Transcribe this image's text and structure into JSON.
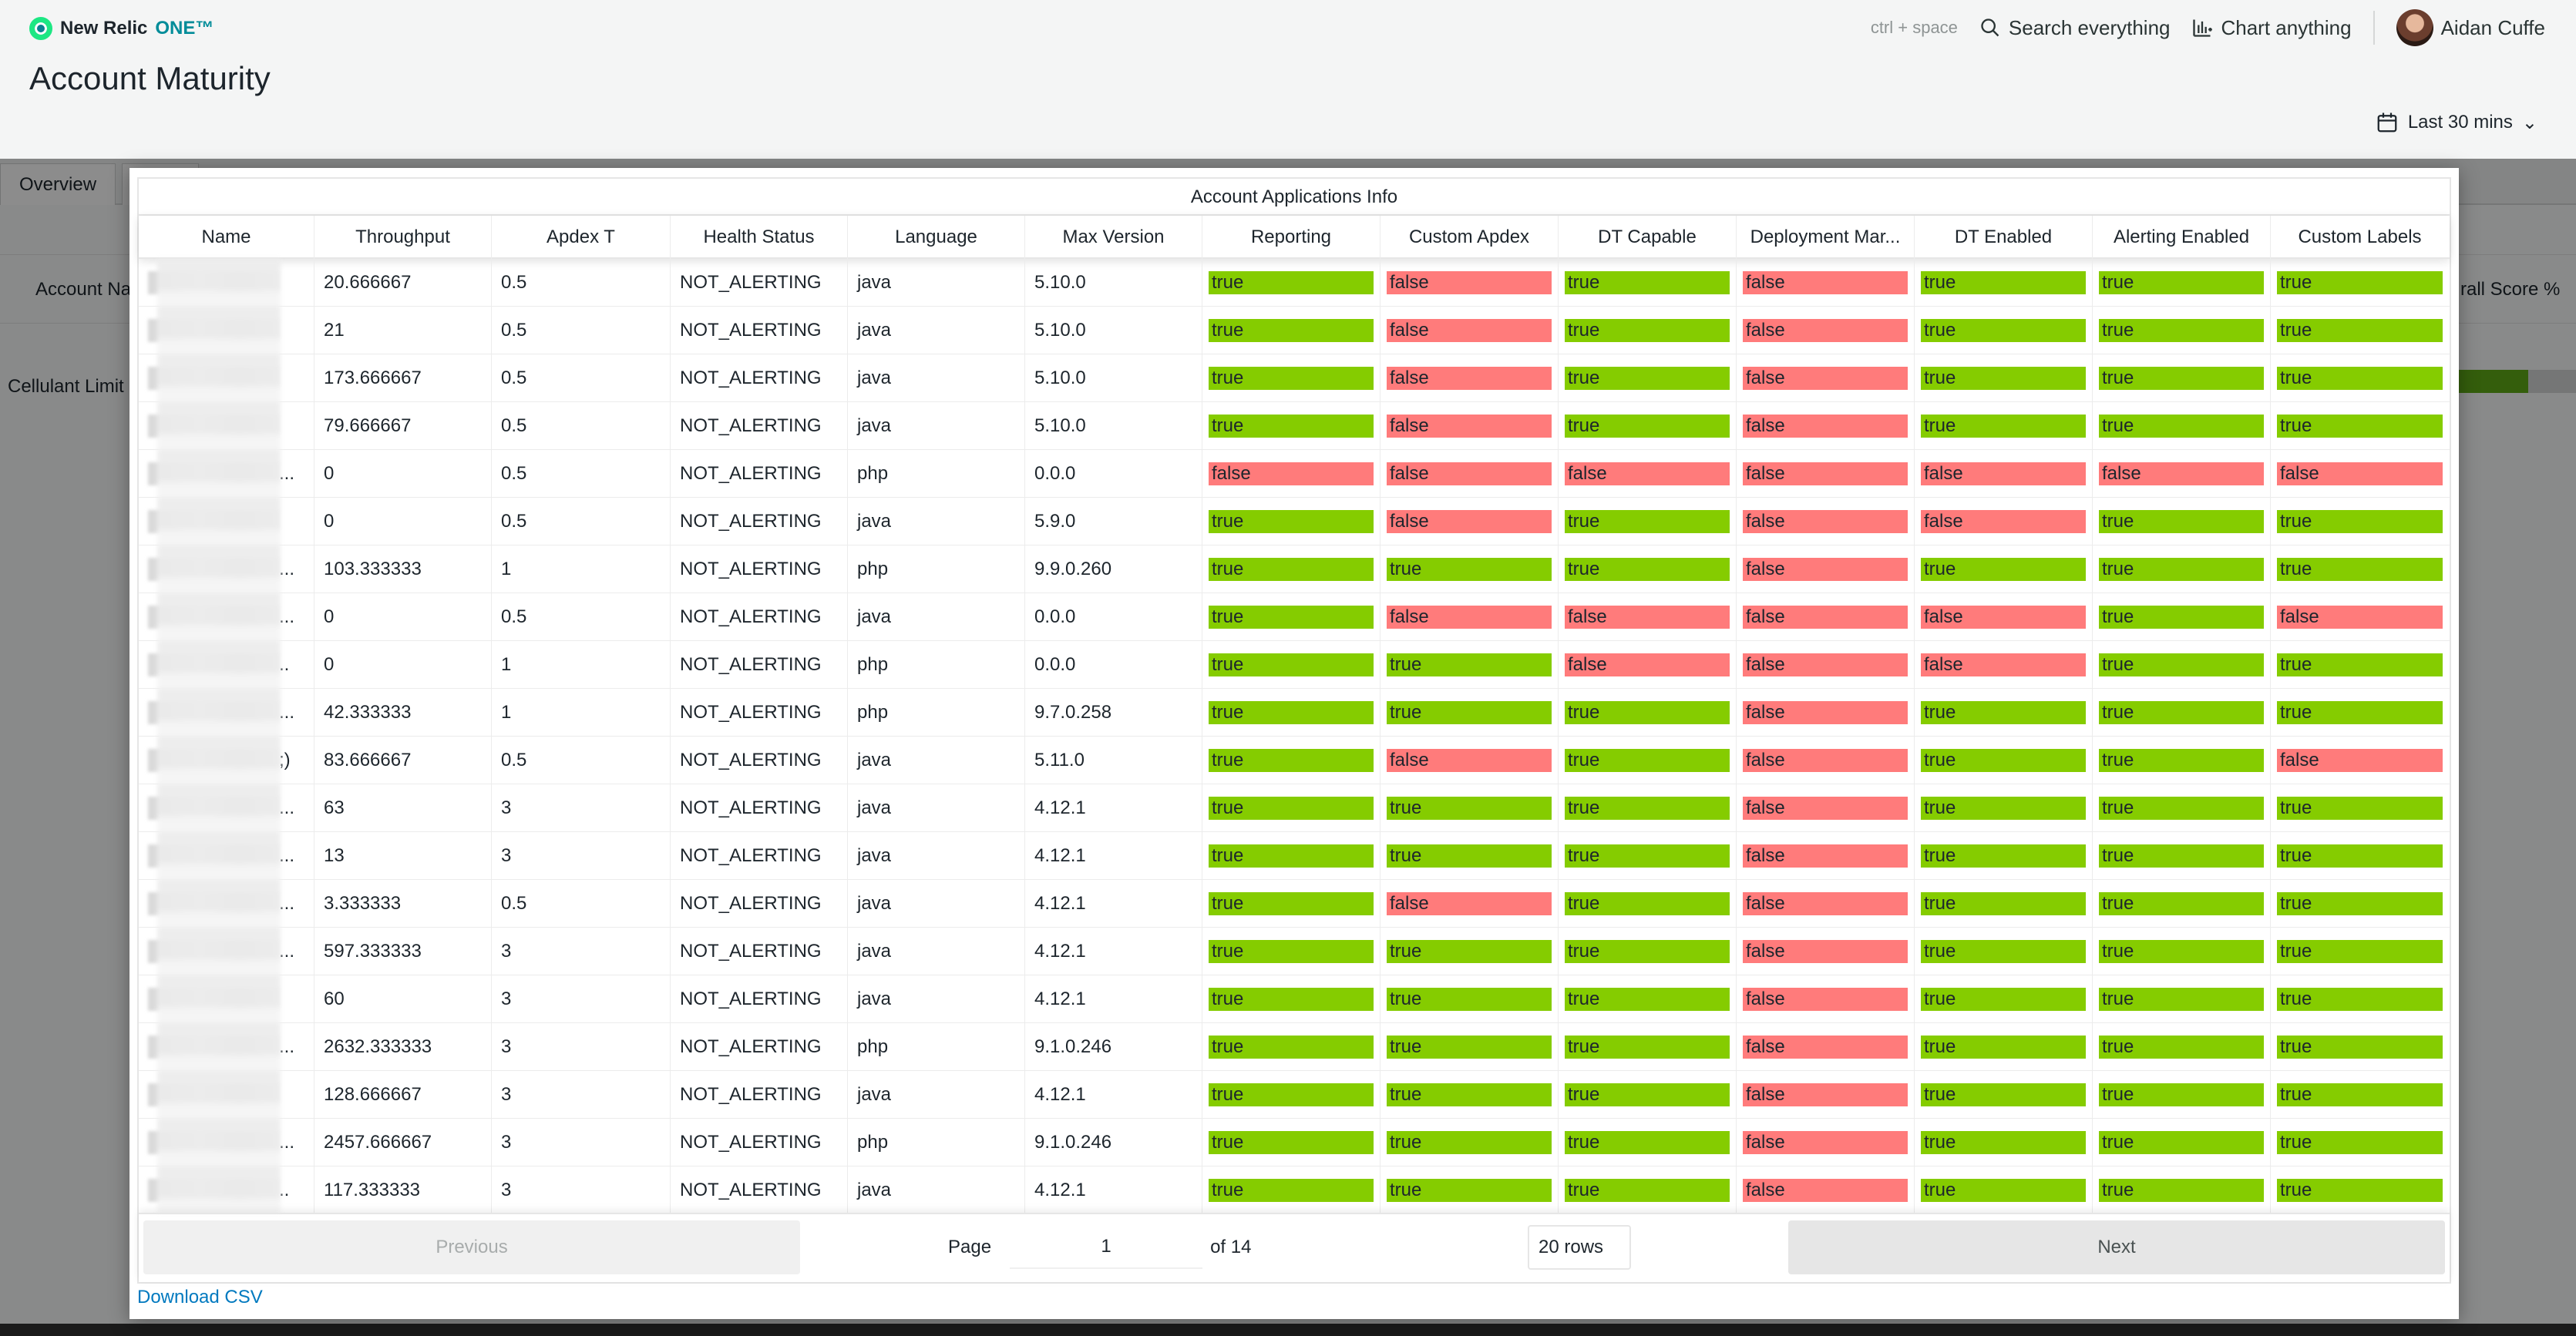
{
  "brand": {
    "name": "New Relic",
    "suffix": "ONE™"
  },
  "page": {
    "title": "Account Maturity"
  },
  "topbar": {
    "shortcut_hint": "ctrl + space",
    "search_label": "Search everything",
    "chart_label": "Chart anything",
    "user_name": "Aidan Cuffe"
  },
  "time_picker": {
    "label": "Last 30 mins"
  },
  "background": {
    "tab_overview": "Overview",
    "header_left": "Account Na",
    "header_right": "rall Score %",
    "row_label": "Cellulant Limit",
    "score_fraction": 0.62
  },
  "table": {
    "caption": "Account Applications Info",
    "columns": [
      "Name",
      "Throughput",
      "Apdex T",
      "Health Status",
      "Language",
      "Max Version",
      "Reporting",
      "Custom Apdex",
      "DT Capable",
      "Deployment Mar...",
      "DT Enabled",
      "Alerting Enabled",
      "Custom Labels"
    ],
    "rows": [
      {
        "name_tail": "",
        "throughput": "20.666667",
        "apdex": "0.5",
        "health": "NOT_ALERTING",
        "language": "java",
        "version": "5.10.0",
        "flags": [
          "true",
          "false",
          "true",
          "false",
          "true",
          "true",
          "true"
        ]
      },
      {
        "name_tail": "",
        "throughput": "21",
        "apdex": "0.5",
        "health": "NOT_ALERTING",
        "language": "java",
        "version": "5.10.0",
        "flags": [
          "true",
          "false",
          "true",
          "false",
          "true",
          "true",
          "true"
        ]
      },
      {
        "name_tail": "",
        "throughput": "173.666667",
        "apdex": "0.5",
        "health": "NOT_ALERTING",
        "language": "java",
        "version": "5.10.0",
        "flags": [
          "true",
          "false",
          "true",
          "false",
          "true",
          "true",
          "true"
        ]
      },
      {
        "name_tail": "",
        "throughput": "79.666667",
        "apdex": "0.5",
        "health": "NOT_ALERTING",
        "language": "java",
        "version": "5.10.0",
        "flags": [
          "true",
          "false",
          "true",
          "false",
          "true",
          "true",
          "true"
        ]
      },
      {
        "name_tail": "...",
        "throughput": "0",
        "apdex": "0.5",
        "health": "NOT_ALERTING",
        "language": "php",
        "version": "0.0.0",
        "flags": [
          "false",
          "false",
          "false",
          "false",
          "false",
          "false",
          "false"
        ]
      },
      {
        "name_tail": "",
        "throughput": "0",
        "apdex": "0.5",
        "health": "NOT_ALERTING",
        "language": "java",
        "version": "5.9.0",
        "flags": [
          "true",
          "false",
          "true",
          "false",
          "false",
          "true",
          "true"
        ]
      },
      {
        "name_tail": "...",
        "throughput": "103.333333",
        "apdex": "1",
        "health": "NOT_ALERTING",
        "language": "php",
        "version": "9.9.0.260",
        "flags": [
          "true",
          "true",
          "true",
          "false",
          "true",
          "true",
          "true"
        ]
      },
      {
        "name_tail": "...",
        "throughput": "0",
        "apdex": "0.5",
        "health": "NOT_ALERTING",
        "language": "java",
        "version": "0.0.0",
        "flags": [
          "true",
          "false",
          "false",
          "false",
          "false",
          "true",
          "false"
        ]
      },
      {
        "name_tail": "..",
        "throughput": "0",
        "apdex": "1",
        "health": "NOT_ALERTING",
        "language": "php",
        "version": "0.0.0",
        "flags": [
          "true",
          "true",
          "false",
          "false",
          "false",
          "true",
          "true"
        ]
      },
      {
        "name_tail": "...",
        "throughput": "42.333333",
        "apdex": "1",
        "health": "NOT_ALERTING",
        "language": "php",
        "version": "9.7.0.258",
        "flags": [
          "true",
          "true",
          "true",
          "false",
          "true",
          "true",
          "true"
        ]
      },
      {
        "name_tail": ";)",
        "throughput": "83.666667",
        "apdex": "0.5",
        "health": "NOT_ALERTING",
        "language": "java",
        "version": "5.11.0",
        "flags": [
          "true",
          "false",
          "true",
          "false",
          "true",
          "true",
          "false"
        ]
      },
      {
        "name_tail": "...",
        "throughput": "63",
        "apdex": "3",
        "health": "NOT_ALERTING",
        "language": "java",
        "version": "4.12.1",
        "flags": [
          "true",
          "true",
          "true",
          "false",
          "true",
          "true",
          "true"
        ]
      },
      {
        "name_tail": "...",
        "throughput": "13",
        "apdex": "3",
        "health": "NOT_ALERTING",
        "language": "java",
        "version": "4.12.1",
        "flags": [
          "true",
          "true",
          "true",
          "false",
          "true",
          "true",
          "true"
        ]
      },
      {
        "name_tail": "...",
        "throughput": "3.333333",
        "apdex": "0.5",
        "health": "NOT_ALERTING",
        "language": "java",
        "version": "4.12.1",
        "flags": [
          "true",
          "false",
          "true",
          "false",
          "true",
          "true",
          "true"
        ]
      },
      {
        "name_tail": "...",
        "throughput": "597.333333",
        "apdex": "3",
        "health": "NOT_ALERTING",
        "language": "java",
        "version": "4.12.1",
        "flags": [
          "true",
          "true",
          "true",
          "false",
          "true",
          "true",
          "true"
        ]
      },
      {
        "name_tail": "",
        "throughput": "60",
        "apdex": "3",
        "health": "NOT_ALERTING",
        "language": "java",
        "version": "4.12.1",
        "flags": [
          "true",
          "true",
          "true",
          "false",
          "true",
          "true",
          "true"
        ]
      },
      {
        "name_tail": "...",
        "throughput": "2632.333333",
        "apdex": "3",
        "health": "NOT_ALERTING",
        "language": "php",
        "version": "9.1.0.246",
        "flags": [
          "true",
          "true",
          "true",
          "false",
          "true",
          "true",
          "true"
        ]
      },
      {
        "name_tail": "",
        "throughput": "128.666667",
        "apdex": "3",
        "health": "NOT_ALERTING",
        "language": "java",
        "version": "4.12.1",
        "flags": [
          "true",
          "true",
          "true",
          "false",
          "true",
          "true",
          "true"
        ]
      },
      {
        "name_tail": "...",
        "throughput": "2457.666667",
        "apdex": "3",
        "health": "NOT_ALERTING",
        "language": "php",
        "version": "9.1.0.246",
        "flags": [
          "true",
          "true",
          "true",
          "false",
          "true",
          "true",
          "true"
        ]
      },
      {
        "name_tail": "..",
        "throughput": "117.333333",
        "apdex": "3",
        "health": "NOT_ALERTING",
        "language": "java",
        "version": "4.12.1",
        "flags": [
          "true",
          "true",
          "true",
          "false",
          "true",
          "true",
          "true"
        ]
      }
    ]
  },
  "pagination": {
    "previous_label": "Previous",
    "next_label": "Next",
    "page_label": "Page",
    "page_value": "1",
    "of_label": "of 14",
    "rows_label": "20 rows"
  },
  "download_label": "Download CSV",
  "colors": {
    "true_bg": "#85cc00",
    "false_bg": "#ff7b7b",
    "link": "#0079bf"
  }
}
